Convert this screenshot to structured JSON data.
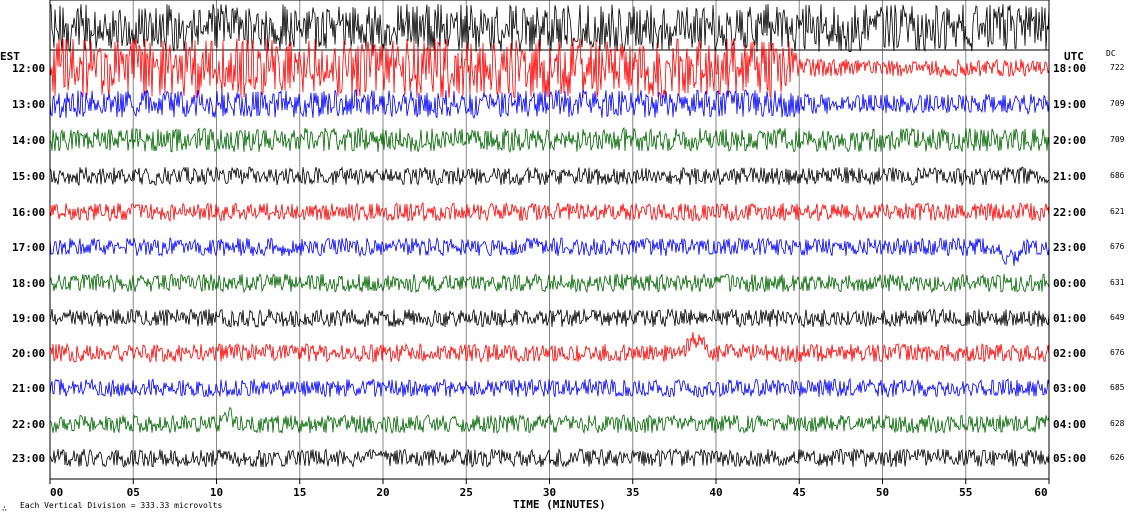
{
  "chart_data": {
    "type": "line",
    "left_tz": "EST",
    "right_tz": "UTC",
    "dc_header": "DC",
    "xlabel": "TIME (MINUTES)",
    "x_ticks": [
      "00",
      "05",
      "10",
      "15",
      "20",
      "25",
      "30",
      "35",
      "40",
      "45",
      "50",
      "55",
      "60"
    ],
    "xlim": [
      0,
      60
    ],
    "footer": "Each Vertical Division =  333.33 microvolts",
    "footer_mark": "∴",
    "colors": [
      "#000000",
      "#ff0000",
      "#0000ff",
      "#006600"
    ],
    "traces": [
      {
        "est": "",
        "utc": "",
        "dc": "",
        "color": "#000000"
      },
      {
        "est": "12:00",
        "utc": "18:00",
        "dc": "722",
        "color": "#ff0000"
      },
      {
        "est": "13:00",
        "utc": "19:00",
        "dc": "709",
        "color": "#0000ff"
      },
      {
        "est": "14:00",
        "utc": "20:00",
        "dc": "709",
        "color": "#006600"
      },
      {
        "est": "15:00",
        "utc": "21:00",
        "dc": "686",
        "color": "#000000"
      },
      {
        "est": "16:00",
        "utc": "22:00",
        "dc": "621",
        "color": "#ff0000"
      },
      {
        "est": "17:00",
        "utc": "23:00",
        "dc": "676",
        "color": "#0000ff"
      },
      {
        "est": "18:00",
        "utc": "00:00",
        "dc": "631",
        "color": "#006600"
      },
      {
        "est": "19:00",
        "utc": "01:00",
        "dc": "649",
        "color": "#000000"
      },
      {
        "est": "20:00",
        "utc": "02:00",
        "dc": "676",
        "color": "#ff0000"
      },
      {
        "est": "21:00",
        "utc": "03:00",
        "dc": "685",
        "color": "#0000ff"
      },
      {
        "est": "22:00",
        "utc": "04:00",
        "dc": "628",
        "color": "#006600"
      },
      {
        "est": "23:00",
        "utc": "05:00",
        "dc": "626",
        "color": "#000000"
      }
    ]
  }
}
